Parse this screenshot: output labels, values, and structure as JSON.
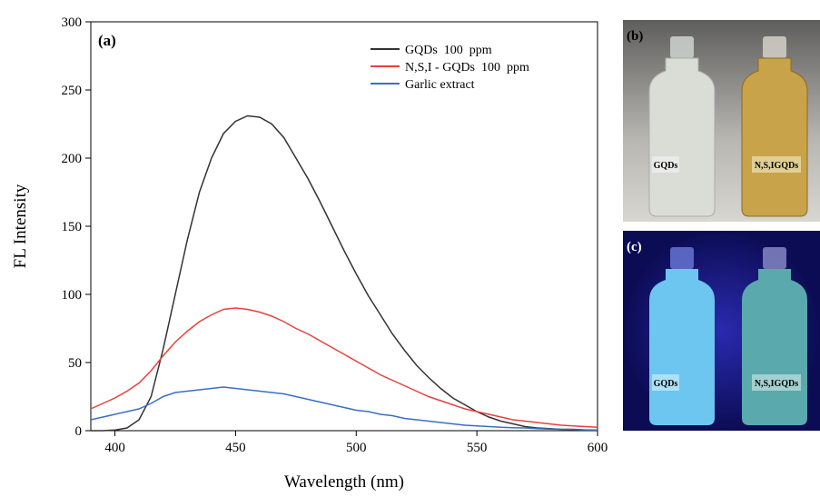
{
  "chart_data": {
    "type": "line",
    "panel_label": "(a)",
    "x_label": "Wavelength (nm)",
    "y_label": "FL Intensity",
    "xlim": [
      390,
      600
    ],
    "xticks": [
      400,
      450,
      500,
      550,
      600
    ],
    "ylim": [
      0,
      300
    ],
    "yticks": [
      0,
      50,
      100,
      150,
      200,
      250,
      300
    ],
    "legend": "upper right",
    "x": [
      390,
      395,
      400,
      405,
      410,
      415,
      420,
      425,
      430,
      435,
      440,
      445,
      450,
      455,
      460,
      465,
      470,
      475,
      480,
      485,
      490,
      495,
      500,
      505,
      510,
      515,
      520,
      525,
      530,
      535,
      540,
      545,
      550,
      555,
      560,
      565,
      570,
      575,
      580,
      585,
      590,
      595,
      600
    ],
    "series": [
      {
        "name": "GQDs  100  ppm",
        "color": "#333333",
        "values": [
          0,
          0,
          0.5,
          2,
          8,
          25,
          60,
          100,
          140,
          175,
          200,
          218,
          227,
          231,
          230,
          225,
          215,
          200,
          185,
          168,
          150,
          132,
          115,
          99,
          85,
          71,
          59,
          48,
          39,
          31,
          24,
          19,
          14,
          10,
          7,
          5,
          3,
          2,
          1.5,
          1,
          1,
          0.5,
          0.5
        ]
      },
      {
        "name": "N,S,I - GQDs  100  ppm",
        "color": "#e8413c",
        "values": [
          16,
          20,
          24,
          29,
          35,
          44,
          55,
          65,
          73,
          80,
          85,
          89,
          90,
          89,
          87,
          84,
          80,
          75,
          71,
          66,
          61,
          56,
          51,
          46,
          41,
          37,
          33,
          29,
          25,
          22,
          19,
          16,
          14,
          12,
          10,
          8,
          7,
          6,
          5,
          4,
          3.5,
          3,
          2.5
        ]
      },
      {
        "name": "Garlic extract",
        "color": "#3a6fc4",
        "values": [
          8,
          10,
          12,
          14,
          16,
          20,
          25,
          28,
          29,
          30,
          31,
          32,
          31,
          30,
          29,
          28,
          27,
          25,
          23,
          21,
          19,
          17,
          15,
          14,
          12,
          11,
          9,
          8,
          7,
          6,
          5,
          4,
          3.5,
          3,
          2.5,
          2.2,
          2,
          1.5,
          1.2,
          1,
          0.8,
          0.6,
          0.5
        ]
      }
    ]
  },
  "photos": [
    {
      "label": "(b)",
      "vials": [
        "GQDs",
        "N,S,IGQDs"
      ]
    },
    {
      "label": "(c)",
      "vials": [
        "GQDs",
        "N,S,IGQDs"
      ]
    }
  ]
}
